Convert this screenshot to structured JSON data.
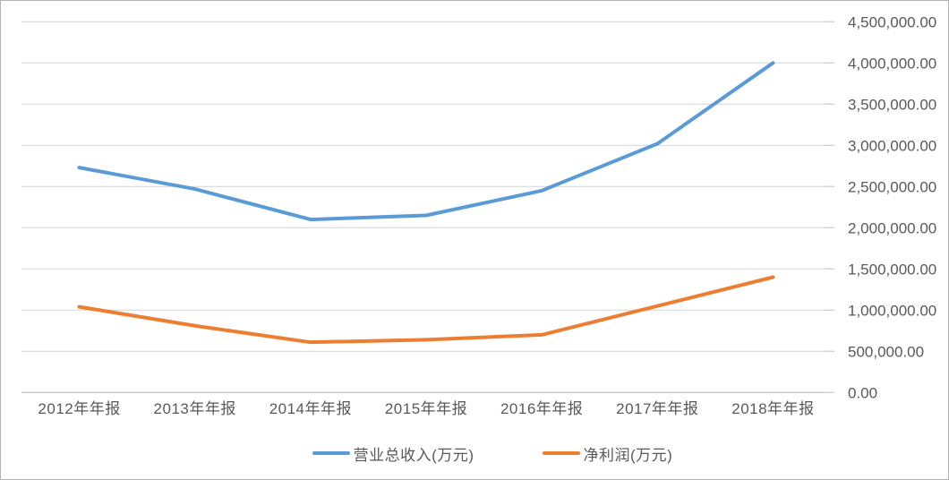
{
  "chart_data": {
    "type": "line",
    "title": "",
    "xlabel": "",
    "ylabel": "",
    "categories": [
      "2012年年报",
      "2013年年报",
      "2014年年报",
      "2015年年报",
      "2016年年报",
      "2017年年报",
      "2018年年报"
    ],
    "series": [
      {
        "name": "营业总收入(万元)",
        "color": "#5B9BD5",
        "values": [
          2730000,
          2470000,
          2100000,
          2150000,
          2450000,
          3020000,
          4000000
        ]
      },
      {
        "name": "净利润(万元)",
        "color": "#ED7D31",
        "values": [
          1040000,
          810000,
          610000,
          640000,
          700000,
          1050000,
          1400000
        ]
      }
    ],
    "ylim": [
      0,
      4500000
    ],
    "ytick_step": 500000,
    "yticks": [
      "0.00",
      "500,000.00",
      "1,000,000.00",
      "1,500,000.00",
      "2,000,000.00",
      "2,500,000.00",
      "3,000,000.00",
      "3,500,000.00",
      "4,000,000.00",
      "4,500,000.00"
    ],
    "yaxis_side": "right",
    "grid": true,
    "legend_position": "bottom",
    "colors": {
      "gridline": "#D9D9D9",
      "axis_line": "#C6C6C6",
      "tick_mark": "#D2D2D2",
      "text": "#595959"
    }
  }
}
